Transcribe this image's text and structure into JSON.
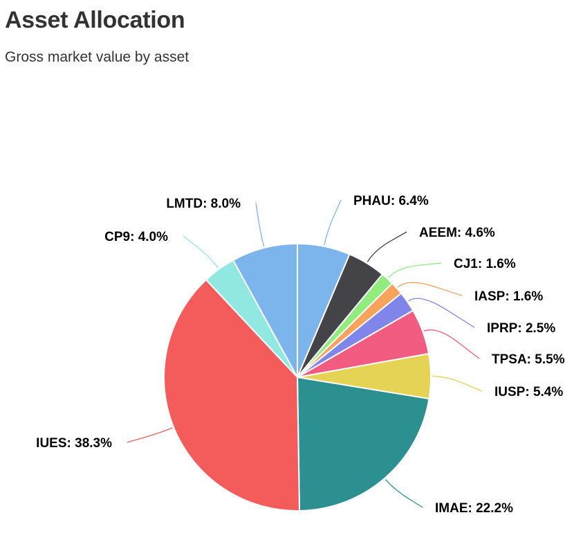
{
  "header": {
    "title": "Asset Allocation",
    "subtitle": "Gross market value by asset"
  },
  "chart_data": {
    "type": "pie",
    "title": "Asset Allocation",
    "subtitle": "Gross market value by asset",
    "slices": [
      {
        "name": "PHAU",
        "value": 6.4,
        "label": "PHAU: 6.4%",
        "color": "#7cb4ec"
      },
      {
        "name": "AEEM",
        "value": 4.6,
        "label": "AEEM: 4.6%",
        "color": "#434348"
      },
      {
        "name": "CJ1",
        "value": 1.6,
        "label": "CJ1: 1.6%",
        "color": "#90ed7d"
      },
      {
        "name": "IASP",
        "value": 1.6,
        "label": "IASP: 1.6%",
        "color": "#f7a35c"
      },
      {
        "name": "IPRP",
        "value": 2.5,
        "label": "IPRP: 2.5%",
        "color": "#8085e9"
      },
      {
        "name": "TPSA",
        "value": 5.5,
        "label": "TPSA: 5.5%",
        "color": "#f15c80"
      },
      {
        "name": "IUSP",
        "value": 5.4,
        "label": "IUSP: 5.4%",
        "color": "#e4d354"
      },
      {
        "name": "IMAE",
        "value": 22.2,
        "label": "IMAE: 22.2%",
        "color": "#2b908f"
      },
      {
        "name": "IUES",
        "value": 38.3,
        "label": "IUES: 38.3%",
        "color": "#f45b5b"
      },
      {
        "name": "CP9",
        "value": 4.0,
        "label": "CP9: 4.0%",
        "color": "#91e8e1"
      },
      {
        "name": "LMTD",
        "value": 8.0,
        "label": "LMTD: 8.0%",
        "color": "#7cb4ec"
      }
    ]
  }
}
